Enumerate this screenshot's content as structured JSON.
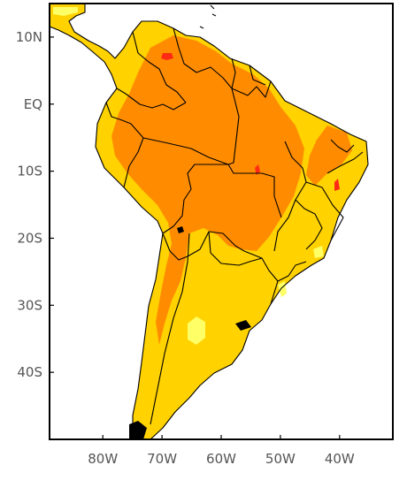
{
  "map": {
    "type": "filled-contour-map",
    "region": "South America",
    "colors": {
      "background": "#ffffff",
      "level_1": "#ffff66",
      "level_2": "#ffd200",
      "level_3": "#ff8c00",
      "level_4": "#ff2a14",
      "borders": "#000000",
      "frame": "#000000"
    },
    "lon_range": [
      -89,
      -31
    ],
    "lat_range": [
      -50,
      15
    ],
    "y_axis": {
      "ticks": [
        {
          "lat": 10,
          "label": "10N"
        },
        {
          "lat": 0,
          "label": "EQ"
        },
        {
          "lat": -10,
          "label": "10S"
        },
        {
          "lat": -20,
          "label": "20S"
        },
        {
          "lat": -30,
          "label": "30S"
        },
        {
          "lat": -40,
          "label": "40S"
        }
      ]
    },
    "x_axis": {
      "ticks": [
        {
          "lon": -80,
          "label": "80W"
        },
        {
          "lon": -70,
          "label": "70W"
        },
        {
          "lon": -60,
          "label": "60W"
        },
        {
          "lon": -50,
          "label": "50W"
        },
        {
          "lon": -40,
          "label": "40W"
        }
      ]
    }
  }
}
